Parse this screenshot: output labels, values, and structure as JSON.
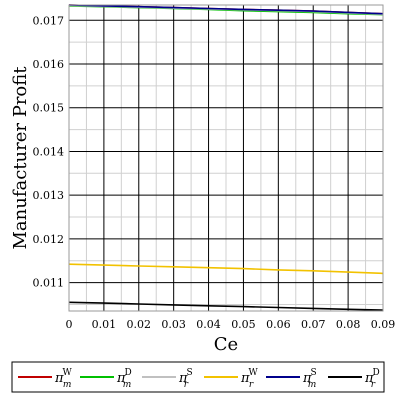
{
  "chart_data": {
    "type": "line",
    "xlabel": "Ce",
    "ylabel": "Manufacturer Profit",
    "xlim": [
      0,
      0.09
    ],
    "ylim": [
      0.01035,
      0.01735
    ],
    "x_ticks": [
      "0",
      "0.01",
      "0.02",
      "0.03",
      "0.04",
      "0.05",
      "0.06",
      "0.07",
      "0.08",
      "0.09"
    ],
    "y_ticks": [
      "0.011",
      "0.012",
      "0.013",
      "0.014",
      "0.015",
      "0.016",
      "0.017"
    ],
    "y_tick_values": [
      0.011,
      0.012,
      0.013,
      0.014,
      0.015,
      0.016,
      0.017
    ],
    "grid": true,
    "legend_position": "bottom",
    "x": [
      0,
      0.01,
      0.02,
      0.03,
      0.04,
      0.05,
      0.06,
      0.07,
      0.08,
      0.09
    ],
    "series": [
      {
        "name": "π_m^W",
        "base": "π",
        "sub": "m",
        "sup": "W",
        "color": "#c00000",
        "values": [
          0.01735,
          0.01733,
          0.01731,
          0.01729,
          0.01727,
          0.01725,
          0.01723,
          0.01721,
          0.01718,
          0.01715
        ]
      },
      {
        "name": "π_m^D",
        "base": "π",
        "sub": "m",
        "sup": "D",
        "color": "#00c000",
        "values": [
          0.01733,
          0.01731,
          0.01729,
          0.01727,
          0.01725,
          0.01722,
          0.0172,
          0.01718,
          0.01715,
          0.01713
        ]
      },
      {
        "name": "π_r^S",
        "base": "π",
        "sub": "r",
        "sup": "S",
        "color": "#c0c0c0",
        "values": [
          0.01734,
          0.01732,
          0.0173,
          0.01728,
          0.01726,
          0.01724,
          0.01722,
          0.0172,
          0.01717,
          0.01714
        ]
      },
      {
        "name": "π_r^W",
        "base": "π",
        "sub": "r",
        "sup": "W",
        "color": "#f2c200",
        "values": [
          0.01142,
          0.0114,
          0.01138,
          0.01136,
          0.01134,
          0.01132,
          0.01129,
          0.01127,
          0.01124,
          0.01121
        ]
      },
      {
        "name": "π_m^S",
        "base": "π",
        "sub": "m",
        "sup": "S",
        "color": "#00008b",
        "values": [
          0.01735,
          0.01733,
          0.01731,
          0.01729,
          0.01727,
          0.01725,
          0.01723,
          0.01721,
          0.01718,
          0.01715
        ]
      },
      {
        "name": "π_r^D",
        "base": "π",
        "sub": "r",
        "sup": "D",
        "color": "#000000",
        "values": [
          0.01055,
          0.01053,
          0.01051,
          0.01049,
          0.01047,
          0.01045,
          0.01043,
          0.01041,
          0.01039,
          0.01037
        ]
      }
    ]
  }
}
